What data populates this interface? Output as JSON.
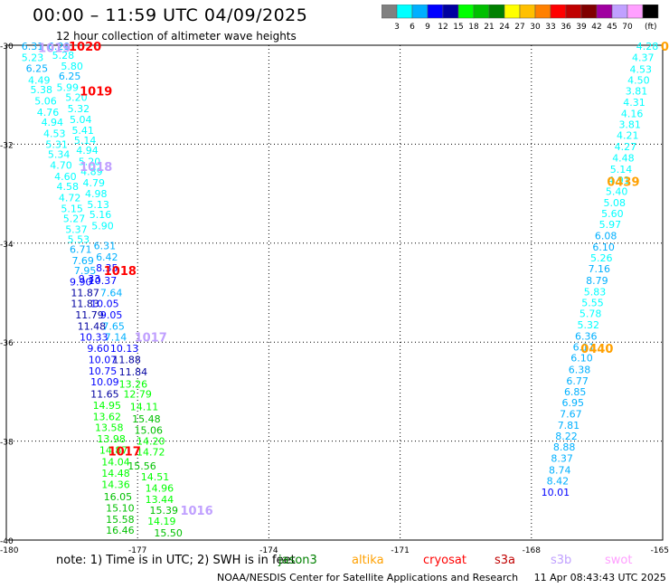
{
  "header": {
    "title": "00:00 – 11:59 UTC 04/09/2025",
    "subtitle": "12 hour collection of altimeter wave heights"
  },
  "colorbar": {
    "colors": [
      "#808080",
      "#00ffff",
      "#00b0ff",
      "#0000ff",
      "#0000a0",
      "#00ff00",
      "#00c000",
      "#008000",
      "#ffff00",
      "#ffc000",
      "#ff8000",
      "#ff0000",
      "#c00000",
      "#800000",
      "#a000a0",
      "#c0a0ff",
      "#ffa0ff",
      "#000000"
    ],
    "labels": [
      "3",
      "6",
      "9",
      "12",
      "15",
      "18",
      "21",
      "24",
      "27",
      "30",
      "33",
      "36",
      "39",
      "42",
      "45",
      "70"
    ],
    "unit": "(ft)"
  },
  "axes": {
    "x_ticks": [
      "-180",
      "-177",
      "-174",
      "-171",
      "-168",
      "-165"
    ],
    "y_ticks": [
      "-30",
      "-32",
      "-34",
      "-36",
      "-38",
      "-40"
    ]
  },
  "tracks": {
    "left_a": {
      "color_hint": "mixed",
      "points": [
        {
          "lon": -179.4,
          "lat": -30.02,
          "v": "6.31",
          "c": "#00b0ff"
        },
        {
          "lon": -178.8,
          "lat": -30.02,
          "v": "6.29",
          "c": "#00b0ff"
        },
        {
          "lon": -179.4,
          "lat": -30.25,
          "v": "5.23",
          "c": "#00ffff"
        },
        {
          "lon": -178.7,
          "lat": -30.2,
          "v": "5.28",
          "c": "#00ffff"
        },
        {
          "lon": -179.3,
          "lat": -30.47,
          "v": "6.25",
          "c": "#00b0ff"
        },
        {
          "lon": -178.5,
          "lat": -30.42,
          "v": "5.80",
          "c": "#00ffff"
        },
        {
          "lon": -179.25,
          "lat": -30.7,
          "v": "4.49",
          "c": "#00ffff"
        },
        {
          "lon": -178.55,
          "lat": -30.62,
          "v": "6.25",
          "c": "#00b0ff"
        },
        {
          "lon": -179.2,
          "lat": -30.9,
          "v": "5.38",
          "c": "#00ffff"
        },
        {
          "lon": -178.6,
          "lat": -30.85,
          "v": "5.99",
          "c": "#00ffff"
        },
        {
          "lon": -179.1,
          "lat": -31.12,
          "v": "5.06",
          "c": "#00ffff"
        },
        {
          "lon": -178.4,
          "lat": -31.05,
          "v": "5.20",
          "c": "#00ffff"
        },
        {
          "lon": -179.05,
          "lat": -31.35,
          "v": "4.76",
          "c": "#00ffff"
        },
        {
          "lon": -178.35,
          "lat": -31.28,
          "v": "5.32",
          "c": "#00ffff"
        },
        {
          "lon": -178.95,
          "lat": -31.55,
          "v": "4.94",
          "c": "#00ffff"
        },
        {
          "lon": -178.3,
          "lat": -31.5,
          "v": "5.04",
          "c": "#00ffff"
        },
        {
          "lon": -178.9,
          "lat": -31.78,
          "v": "4.53",
          "c": "#00ffff"
        },
        {
          "lon": -178.25,
          "lat": -31.72,
          "v": "5.41",
          "c": "#00ffff"
        },
        {
          "lon": -178.85,
          "lat": -32.0,
          "v": "5.31",
          "c": "#00ffff"
        },
        {
          "lon": -178.2,
          "lat": -31.92,
          "v": "5.14",
          "c": "#00ffff"
        },
        {
          "lon": -178.8,
          "lat": -32.2,
          "v": "5.34",
          "c": "#00ffff"
        },
        {
          "lon": -178.15,
          "lat": -32.12,
          "v": "4.94",
          "c": "#00ffff"
        },
        {
          "lon": -178.75,
          "lat": -32.42,
          "v": "4.70",
          "c": "#00ffff"
        },
        {
          "lon": -178.1,
          "lat": -32.35,
          "v": "5.20",
          "c": "#00ffff"
        },
        {
          "lon": -178.65,
          "lat": -32.65,
          "v": "4.60",
          "c": "#00ffff"
        },
        {
          "lon": -178.05,
          "lat": -32.55,
          "v": "4.89",
          "c": "#00ffff"
        },
        {
          "lon": -178.6,
          "lat": -32.85,
          "v": "4.58",
          "c": "#00ffff"
        },
        {
          "lon": -178.0,
          "lat": -32.78,
          "v": "4.79",
          "c": "#00ffff"
        },
        {
          "lon": -178.55,
          "lat": -33.08,
          "v": "4.72",
          "c": "#00ffff"
        },
        {
          "lon": -177.95,
          "lat": -33.0,
          "v": "4.98",
          "c": "#00ffff"
        },
        {
          "lon": -178.5,
          "lat": -33.3,
          "v": "5.15",
          "c": "#00ffff"
        },
        {
          "lon": -177.9,
          "lat": -33.22,
          "v": "5.13",
          "c": "#00ffff"
        },
        {
          "lon": -178.45,
          "lat": -33.5,
          "v": "5.27",
          "c": "#00ffff"
        },
        {
          "lon": -177.85,
          "lat": -33.42,
          "v": "5.16",
          "c": "#00ffff"
        },
        {
          "lon": -178.4,
          "lat": -33.72,
          "v": "5.37",
          "c": "#00ffff"
        },
        {
          "lon": -177.8,
          "lat": -33.65,
          "v": "5.90",
          "c": "#00ffff"
        },
        {
          "lon": -178.35,
          "lat": -33.92,
          "v": "5.53",
          "c": "#00ffff"
        },
        {
          "lon": -178.3,
          "lat": -34.12,
          "v": "6.71",
          "c": "#00b0ff"
        },
        {
          "lon": -177.75,
          "lat": -34.05,
          "v": "6.31",
          "c": "#00b0ff"
        },
        {
          "lon": -178.25,
          "lat": -34.35,
          "v": "7.69",
          "c": "#00b0ff"
        },
        {
          "lon": -177.7,
          "lat": -34.28,
          "v": "6.42",
          "c": "#00b0ff"
        },
        {
          "lon": -178.2,
          "lat": -34.55,
          "v": "7.95",
          "c": "#00b0ff"
        },
        {
          "lon": -177.7,
          "lat": -34.5,
          "v": "8.35",
          "c": "#0000ff"
        },
        {
          "lon": -178.3,
          "lat": -34.78,
          "v": "9.90",
          "c": "#0000ff"
        },
        {
          "lon": -177.8,
          "lat": -34.75,
          "v": "10.37",
          "c": "#0000ff"
        },
        {
          "lon": -178.1,
          "lat": -34.72,
          "v": "9.33",
          "c": "#0000ff"
        },
        {
          "lon": -178.2,
          "lat": -35.0,
          "v": "11.87",
          "c": "#0000a0"
        },
        {
          "lon": -177.6,
          "lat": -35.0,
          "v": "7.64",
          "c": "#00b0ff"
        },
        {
          "lon": -178.2,
          "lat": -35.22,
          "v": "11.83",
          "c": "#0000a0"
        },
        {
          "lon": -177.75,
          "lat": -35.22,
          "v": "10.05",
          "c": "#0000ff"
        },
        {
          "lon": -178.1,
          "lat": -35.45,
          "v": "11.79",
          "c": "#0000a0"
        },
        {
          "lon": -177.6,
          "lat": -35.45,
          "v": "9.05",
          "c": "#0000ff"
        },
        {
          "lon": -178.05,
          "lat": -35.68,
          "v": "11.48",
          "c": "#0000a0"
        },
        {
          "lon": -177.55,
          "lat": -35.68,
          "v": "7.65",
          "c": "#00b0ff"
        },
        {
          "lon": -178.0,
          "lat": -35.9,
          "v": "10.33",
          "c": "#0000ff"
        },
        {
          "lon": -177.5,
          "lat": -35.9,
          "v": "7.14",
          "c": "#00b0ff"
        },
        {
          "lon": -177.9,
          "lat": -36.12,
          "v": "9.60",
          "c": "#0000ff"
        },
        {
          "lon": -177.3,
          "lat": -36.12,
          "v": "10.13",
          "c": "#0000ff"
        },
        {
          "lon": -177.8,
          "lat": -36.35,
          "v": "10.07",
          "c": "#0000ff"
        },
        {
          "lon": -177.25,
          "lat": -36.35,
          "v": "11.88",
          "c": "#0000a0"
        },
        {
          "lon": -177.8,
          "lat": -36.58,
          "v": "10.75",
          "c": "#0000ff"
        },
        {
          "lon": -177.1,
          "lat": -36.6,
          "v": "11.84",
          "c": "#0000a0"
        },
        {
          "lon": -177.75,
          "lat": -36.8,
          "v": "10.09",
          "c": "#0000ff"
        },
        {
          "lon": -177.1,
          "lat": -36.85,
          "v": "13.26",
          "c": "#00ff00"
        },
        {
          "lon": -177.75,
          "lat": -37.05,
          "v": "11.65",
          "c": "#0000a0"
        },
        {
          "lon": -177.0,
          "lat": -37.05,
          "v": "12.79",
          "c": "#00ff00"
        },
        {
          "lon": -177.7,
          "lat": -37.28,
          "v": "14.95",
          "c": "#00ff00"
        },
        {
          "lon": -176.85,
          "lat": -37.3,
          "v": "14.11",
          "c": "#00ff00"
        },
        {
          "lon": -177.7,
          "lat": -37.5,
          "v": "13.62",
          "c": "#00ff00"
        },
        {
          "lon": -176.8,
          "lat": -37.55,
          "v": "15.48",
          "c": "#00c000"
        },
        {
          "lon": -177.65,
          "lat": -37.72,
          "v": "13.58",
          "c": "#00ff00"
        },
        {
          "lon": -176.75,
          "lat": -37.78,
          "v": "15.06",
          "c": "#00c000"
        },
        {
          "lon": -177.6,
          "lat": -37.95,
          "v": "13.98",
          "c": "#00ff00"
        },
        {
          "lon": -176.7,
          "lat": -38.0,
          "v": "14.20",
          "c": "#00ff00"
        },
        {
          "lon": -177.55,
          "lat": -38.18,
          "v": "14.87",
          "c": "#00ff00"
        },
        {
          "lon": -176.7,
          "lat": -38.22,
          "v": "14.72",
          "c": "#00ff00"
        },
        {
          "lon": -177.5,
          "lat": -38.42,
          "v": "14.04",
          "c": "#00ff00"
        },
        {
          "lon": -176.9,
          "lat": -38.5,
          "v": "15.56",
          "c": "#00c000"
        },
        {
          "lon": -177.5,
          "lat": -38.65,
          "v": "14.48",
          "c": "#00ff00"
        },
        {
          "lon": -176.6,
          "lat": -38.72,
          "v": "14.51",
          "c": "#00ff00"
        },
        {
          "lon": -177.5,
          "lat": -38.88,
          "v": "14.36",
          "c": "#00ff00"
        },
        {
          "lon": -176.5,
          "lat": -38.95,
          "v": "14.96",
          "c": "#00ff00"
        },
        {
          "lon": -177.45,
          "lat": -39.12,
          "v": "16.05",
          "c": "#00c000"
        },
        {
          "lon": -176.5,
          "lat": -39.18,
          "v": "13.44",
          "c": "#00ff00"
        },
        {
          "lon": -177.4,
          "lat": -39.35,
          "v": "15.10",
          "c": "#00c000"
        },
        {
          "lon": -176.4,
          "lat": -39.4,
          "v": "15.39",
          "c": "#00c000"
        },
        {
          "lon": -177.4,
          "lat": -39.58,
          "v": "15.58",
          "c": "#00c000"
        },
        {
          "lon": -176.45,
          "lat": -39.62,
          "v": "14.19",
          "c": "#00ff00"
        },
        {
          "lon": -177.4,
          "lat": -39.8,
          "v": "16.46",
          "c": "#00c000"
        },
        {
          "lon": -176.3,
          "lat": -39.85,
          "v": "15.50",
          "c": "#00c000"
        }
      ]
    },
    "right_a": {
      "color_hint": "mixed",
      "points": [
        {
          "lon": -165.35,
          "lat": -30.02,
          "v": "4.28",
          "c": "#00ffff"
        },
        {
          "lon": -165.45,
          "lat": -30.25,
          "v": "4.37",
          "c": "#00ffff"
        },
        {
          "lon": -165.5,
          "lat": -30.48,
          "v": "4.53",
          "c": "#00ffff"
        },
        {
          "lon": -165.55,
          "lat": -30.7,
          "v": "4.50",
          "c": "#00ffff"
        },
        {
          "lon": -165.6,
          "lat": -30.92,
          "v": "3.81",
          "c": "#00ffff"
        },
        {
          "lon": -165.65,
          "lat": -31.15,
          "v": "4.31",
          "c": "#00ffff"
        },
        {
          "lon": -165.7,
          "lat": -31.38,
          "v": "4.16",
          "c": "#00ffff"
        },
        {
          "lon": -165.75,
          "lat": -31.6,
          "v": "3.81",
          "c": "#00ffff"
        },
        {
          "lon": -165.8,
          "lat": -31.82,
          "v": "4.21",
          "c": "#00ffff"
        },
        {
          "lon": -165.85,
          "lat": -32.05,
          "v": "4.27",
          "c": "#00ffff"
        },
        {
          "lon": -165.9,
          "lat": -32.28,
          "v": "4.48",
          "c": "#00ffff"
        },
        {
          "lon": -165.95,
          "lat": -32.5,
          "v": "5.14",
          "c": "#00ffff"
        },
        {
          "lon": -166.0,
          "lat": -32.72,
          "v": "4.91",
          "c": "#00ffff"
        },
        {
          "lon": -166.05,
          "lat": -32.95,
          "v": "5.40",
          "c": "#00ffff"
        },
        {
          "lon": -166.1,
          "lat": -33.18,
          "v": "5.08",
          "c": "#00ffff"
        },
        {
          "lon": -166.15,
          "lat": -33.4,
          "v": "5.60",
          "c": "#00ffff"
        },
        {
          "lon": -166.2,
          "lat": -33.62,
          "v": "5.97",
          "c": "#00ffff"
        },
        {
          "lon": -166.3,
          "lat": -33.85,
          "v": "6.08",
          "c": "#00b0ff"
        },
        {
          "lon": -166.35,
          "lat": -34.08,
          "v": "6.10",
          "c": "#00b0ff"
        },
        {
          "lon": -166.4,
          "lat": -34.3,
          "v": "5.26",
          "c": "#00ffff"
        },
        {
          "lon": -166.45,
          "lat": -34.52,
          "v": "7.16",
          "c": "#00b0ff"
        },
        {
          "lon": -166.5,
          "lat": -34.75,
          "v": "8.79",
          "c": "#00b0ff"
        },
        {
          "lon": -166.55,
          "lat": -34.98,
          "v": "5.83",
          "c": "#00ffff"
        },
        {
          "lon": -166.6,
          "lat": -35.2,
          "v": "5.55",
          "c": "#00ffff"
        },
        {
          "lon": -166.65,
          "lat": -35.42,
          "v": "5.78",
          "c": "#00ffff"
        },
        {
          "lon": -166.7,
          "lat": -35.65,
          "v": "5.32",
          "c": "#00ffff"
        },
        {
          "lon": -166.75,
          "lat": -35.88,
          "v": "6.36",
          "c": "#00b0ff"
        },
        {
          "lon": -166.8,
          "lat": -36.1,
          "v": "6.11",
          "c": "#00b0ff"
        },
        {
          "lon": -166.85,
          "lat": -36.32,
          "v": "6.10",
          "c": "#00b0ff"
        },
        {
          "lon": -166.9,
          "lat": -36.55,
          "v": "6.38",
          "c": "#00b0ff"
        },
        {
          "lon": -166.95,
          "lat": -36.78,
          "v": "6.77",
          "c": "#00b0ff"
        },
        {
          "lon": -167.0,
          "lat": -37.0,
          "v": "6.85",
          "c": "#00b0ff"
        },
        {
          "lon": -167.05,
          "lat": -37.22,
          "v": "6.95",
          "c": "#00b0ff"
        },
        {
          "lon": -167.1,
          "lat": -37.45,
          "v": "7.67",
          "c": "#00b0ff"
        },
        {
          "lon": -167.15,
          "lat": -37.68,
          "v": "7.81",
          "c": "#00b0ff"
        },
        {
          "lon": -167.2,
          "lat": -37.9,
          "v": "8.22",
          "c": "#00b0ff"
        },
        {
          "lon": -167.25,
          "lat": -38.12,
          "v": "8.88",
          "c": "#00b0ff"
        },
        {
          "lon": -167.3,
          "lat": -38.35,
          "v": "8.37",
          "c": "#00b0ff"
        },
        {
          "lon": -167.35,
          "lat": -38.58,
          "v": "8.74",
          "c": "#00b0ff"
        },
        {
          "lon": -167.4,
          "lat": -38.8,
          "v": "8.42",
          "c": "#00b0ff"
        },
        {
          "lon": -167.45,
          "lat": -39.03,
          "v": "10.01",
          "c": "#0000ff"
        }
      ]
    }
  },
  "time_labels": [
    {
      "lon": -178.2,
      "lat": -30.02,
      "v": "1020",
      "c": "#ff0000"
    },
    {
      "lon": -178.9,
      "lat": -30.05,
      "v": "1019",
      "c": "#c0a0ff"
    },
    {
      "lon": -177.95,
      "lat": -30.92,
      "v": "1019",
      "c": "#ff0000"
    },
    {
      "lon": -177.95,
      "lat": -32.45,
      "v": "1018",
      "c": "#c0a0ff"
    },
    {
      "lon": -177.4,
      "lat": -34.55,
      "v": "1018",
      "c": "#ff0000"
    },
    {
      "lon": -176.7,
      "lat": -35.9,
      "v": "1017",
      "c": "#c0a0ff"
    },
    {
      "lon": -177.3,
      "lat": -38.2,
      "v": "1017",
      "c": "#ff0000"
    },
    {
      "lon": -175.65,
      "lat": -39.4,
      "v": "1016",
      "c": "#c0a0ff"
    },
    {
      "lon": -165.9,
      "lat": -32.75,
      "v": "0439",
      "c": "#ffa000"
    },
    {
      "lon": -166.5,
      "lat": -36.12,
      "v": "0440",
      "c": "#ffa000"
    },
    {
      "lon": -164.95,
      "lat": -30.02,
      "v": "0",
      "c": "#ffa000"
    }
  ],
  "footer": {
    "note1": "note:  1) Time is in UTC; 2) SWH is in feet",
    "satellites": [
      {
        "name": "jason3",
        "color": "#008000"
      },
      {
        "name": "altika",
        "color": "#ffa000"
      },
      {
        "name": "cryosat",
        "color": "#ff0000"
      },
      {
        "name": "s3a",
        "color": "#c00000"
      },
      {
        "name": "s3b",
        "color": "#c0a0ff"
      },
      {
        "name": "swot",
        "color": "#ffa0ff"
      }
    ],
    "credit": "NOAA/NESDIS Center for Satellite Applications and Research",
    "timestamp": "11 Apr 08:43:43 UTC 2025"
  }
}
